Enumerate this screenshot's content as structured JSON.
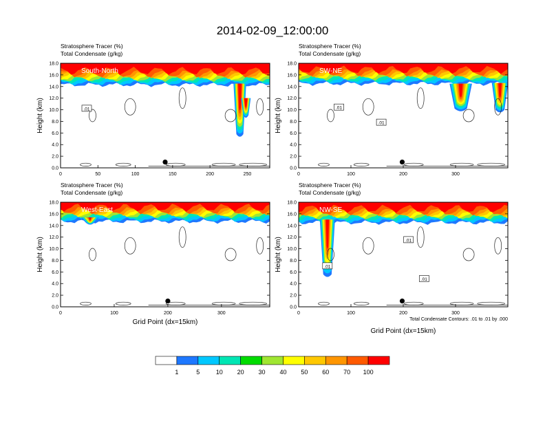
{
  "title": "2014-02-09_12:00:00",
  "chart_data": [
    {
      "type": "heatmap",
      "cross_section": "South-North",
      "subtitle_lines": [
        "Stratosphere Tracer   (%)",
        "Total Condensate   (g/kg)"
      ],
      "ylabel": "Height (km)",
      "xlabel": "",
      "ylim": [
        0,
        18
      ],
      "yticks": [
        "0.0",
        "2.0",
        "4.0",
        "6.0",
        "8.0",
        "10.0",
        "12.0",
        "14.0",
        "16.0",
        "18.0"
      ],
      "xlim": [
        0,
        280
      ],
      "xticks": [
        0,
        50,
        100,
        150,
        200,
        250
      ],
      "marker_x": 140,
      "contour_labels": [
        {
          "text": ".01",
          "x": 35,
          "y": 10.2
        }
      ],
      "tracer_base_km": 14.6,
      "plumes": [
        {
          "x": 240,
          "top": 14.5,
          "bottom": 5.2,
          "width": 14
        },
        {
          "x": 248,
          "top": 12.0,
          "bottom": 8.5,
          "width": 10
        }
      ]
    },
    {
      "type": "heatmap",
      "cross_section": "SW-NE",
      "subtitle_lines": [
        "Stratosphere Tracer   (%)",
        "Total Condensate   (g/kg)"
      ],
      "ylabel": "Height (km)",
      "xlabel": "",
      "ylim": [
        0,
        18
      ],
      "yticks": [
        "0.0",
        "2.0",
        "4.0",
        "6.0",
        "8.0",
        "10.0",
        "12.0",
        "14.0",
        "16.0",
        "18.0"
      ],
      "xlim": [
        0,
        400
      ],
      "xticks": [
        0,
        100,
        200,
        300
      ],
      "marker_x": 198,
      "contour_labels": [
        {
          "text": ".01",
          "x": 77,
          "y": 10.4
        },
        {
          "text": ".01",
          "x": 158,
          "y": 7.8
        }
      ],
      "tracer_base_km": 14.8,
      "plumes": [
        {
          "x": 310,
          "top": 14.5,
          "bottom": 9.6,
          "width": 40
        },
        {
          "x": 385,
          "top": 14.6,
          "bottom": 9.4,
          "width": 28
        }
      ]
    },
    {
      "type": "heatmap",
      "cross_section": "West-East",
      "subtitle_lines": [
        "Stratosphere Tracer   (%)",
        "Total Condensate   (g/kg)"
      ],
      "ylabel": "Height (km)",
      "xlabel": "Grid Point (dx=15km)",
      "ylim": [
        0,
        18
      ],
      "yticks": [
        "0.0",
        "2.0",
        "4.0",
        "6.0",
        "8.0",
        "10.0",
        "12.0",
        "14.0",
        "16.0",
        "18.0"
      ],
      "xlim": [
        0,
        390
      ],
      "xticks": [
        0,
        100,
        200,
        300
      ],
      "marker_x": 200,
      "contour_labels": [],
      "tracer_base_km": 15.0,
      "plumes": [
        {
          "x": 55,
          "top": 15.4,
          "bottom": 14.0,
          "width": 30
        }
      ]
    },
    {
      "type": "heatmap",
      "cross_section": "NW-SE",
      "subtitle_lines": [
        "Stratosphere Tracer   (%)",
        "Total Condensate   (g/kg)"
      ],
      "ylabel": "Height (km)",
      "xlabel": "Grid Point (dx=15km)",
      "ylim": [
        0,
        18
      ],
      "yticks": [
        "0.0",
        "2.0",
        "4.0",
        "6.0",
        "8.0",
        "10.0",
        "12.0",
        "14.0",
        "16.0",
        "18.0"
      ],
      "xlim": [
        0,
        400
      ],
      "xticks": [
        0,
        100,
        200,
        300
      ],
      "marker_x": 198,
      "contour_labels": [
        {
          "text": ".01",
          "x": 55,
          "y": 7.0
        },
        {
          "text": ".01",
          "x": 210,
          "y": 11.5
        },
        {
          "text": ".01",
          "x": 240,
          "y": 4.8
        }
      ],
      "tracer_base_km": 14.8,
      "plumes": [
        {
          "x": 55,
          "top": 15.0,
          "bottom": 5.0,
          "width": 26
        }
      ],
      "footnote": "Total Condensate Contours: .01 to .01 by .000"
    }
  ],
  "colorbar": {
    "labels": [
      "1",
      "5",
      "10",
      "20",
      "30",
      "40",
      "50",
      "60",
      "70",
      "100"
    ],
    "colors": [
      "#ffffff",
      "#1e78ff",
      "#00c8ff",
      "#00e6b4",
      "#00dc00",
      "#a0e632",
      "#ffff00",
      "#ffc800",
      "#ff9600",
      "#ff5a00",
      "#ff0000"
    ]
  }
}
